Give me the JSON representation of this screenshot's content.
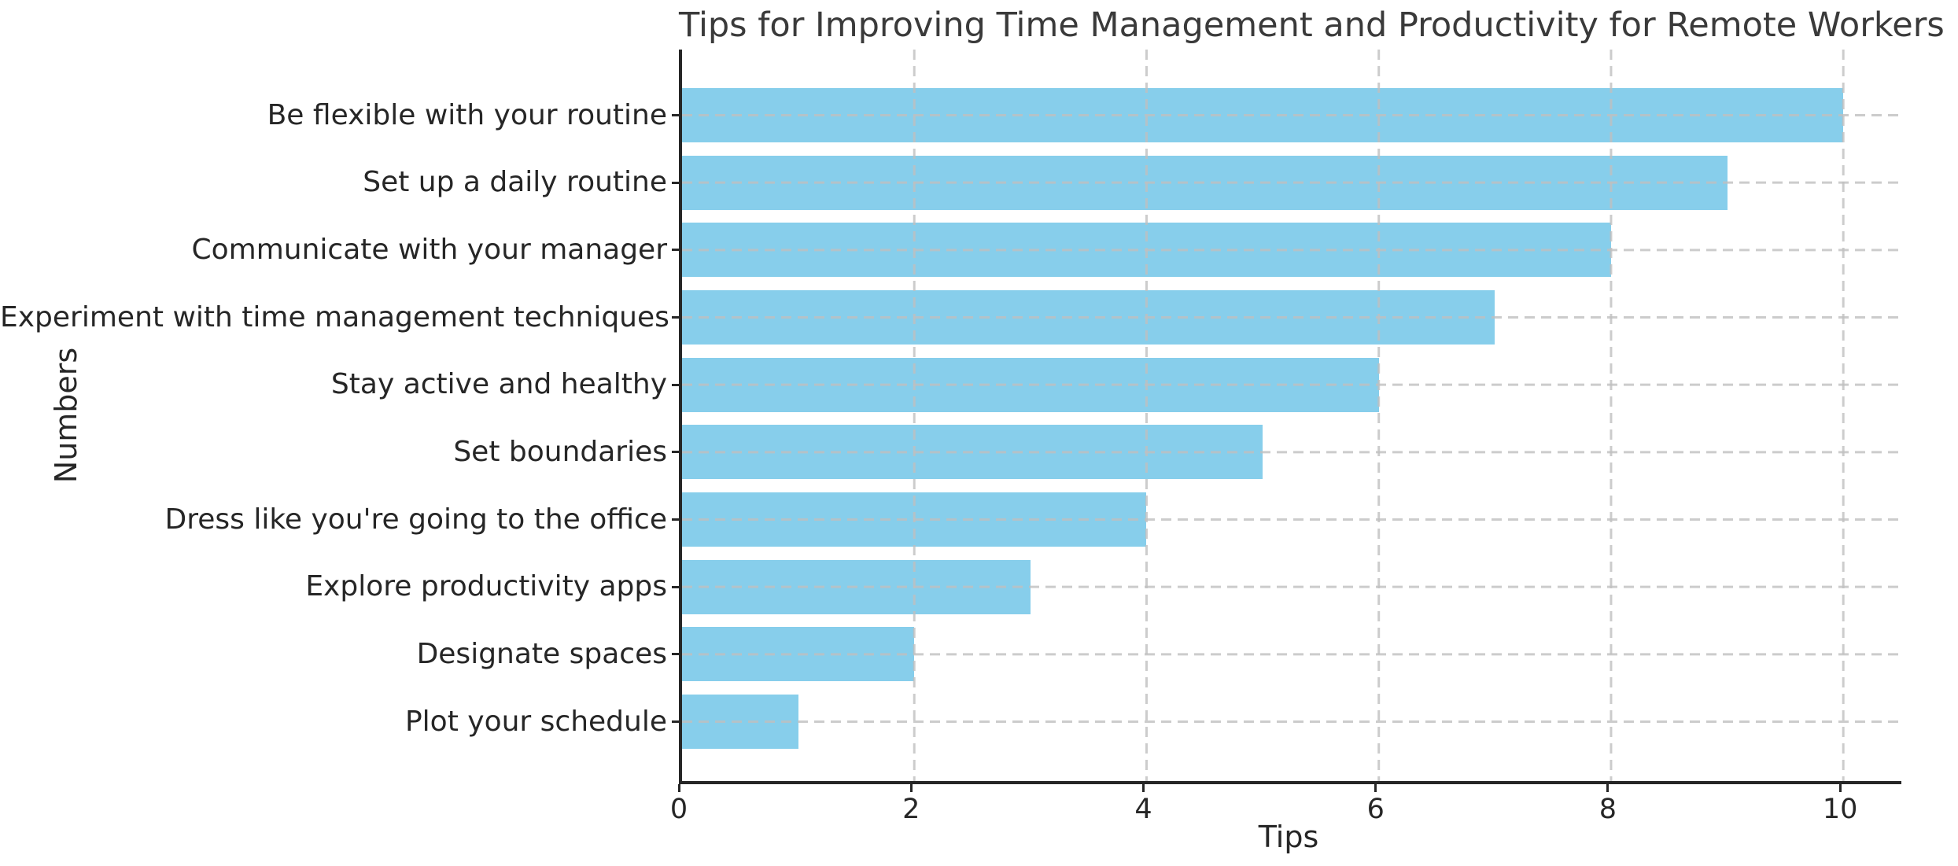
{
  "figure": {
    "background": "#ffffff"
  },
  "chart_data": {
    "type": "bar",
    "orientation": "horizontal",
    "title": "Tips for Improving Time Management and Productivity for Remote Workers",
    "xlabel": "Tips",
    "ylabel": "Numbers",
    "categories": [
      "Be flexible with your routine",
      "Set up a daily routine",
      "Communicate with your manager",
      "Experiment with time management techniques",
      "Stay active and healthy",
      "Set boundaries",
      "Dress like you're going to the office",
      "Explore productivity apps",
      "Designate spaces",
      "Plot your schedule"
    ],
    "values": [
      10,
      9,
      8,
      7,
      6,
      5,
      4,
      3,
      2,
      1
    ],
    "xticks": [
      "0",
      "2",
      "4",
      "6",
      "8",
      "10"
    ],
    "xtick_values": [
      0,
      2,
      4,
      6,
      8,
      10
    ],
    "xlim": [
      0,
      10.5
    ],
    "bar_color": "#87ceeb",
    "grid": true,
    "grid_style": "dashed",
    "grid_color": "#c0c0c0",
    "title_color": "#3a3a3a",
    "text_color": "#262626",
    "spine_color": "#262626",
    "legend_position": "none"
  }
}
